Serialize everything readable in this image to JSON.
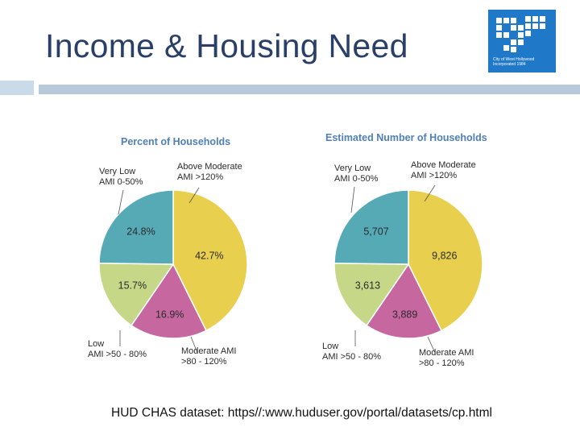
{
  "slide": {
    "title": "Income & Housing Need",
    "source": "HUD CHAS dataset: https//:www.huduser.gov/portal/datasets/cp.html"
  },
  "logo": {
    "caption_line1": "City of West Hollywood",
    "caption_line2": "Incorporated 1984"
  },
  "colors": {
    "above_moderate": "#e8cf4d",
    "moderate": "#c667a0",
    "low": "#c6d887",
    "very_low": "#55aab5",
    "chart_title": "#4f7fb6",
    "label": "#2b2b2b"
  },
  "chart_data": [
    {
      "type": "pie",
      "title": "Percent of Households",
      "categories": [
        "Above Moderate",
        "Moderate",
        "Low",
        "Very Low"
      ],
      "values": [
        42.7,
        16.9,
        15.7,
        24.8
      ],
      "value_labels": [
        "42.7%",
        "16.9%",
        "15.7%",
        "24.8%"
      ],
      "legend_labels": [
        {
          "line1": "Above Moderate",
          "line2": "AMI >120%"
        },
        {
          "line1": "Moderate AMI",
          "line2": ">80 - 120%"
        },
        {
          "line1": "Low",
          "line2": "AMI >50 - 80%"
        },
        {
          "line1": "Very Low",
          "line2": "AMI 0-50%"
        }
      ]
    },
    {
      "type": "pie",
      "title": "Estimated Number of Households",
      "categories": [
        "Above Moderate",
        "Moderate",
        "Low",
        "Very Low"
      ],
      "values": [
        9826,
        3889,
        3613,
        5707
      ],
      "value_labels": [
        "9,826",
        "3,889",
        "3,613",
        "5,707"
      ],
      "legend_labels": [
        {
          "line1": "Above Moderate",
          "line2": "AMI >120%"
        },
        {
          "line1": "Moderate AMI",
          "line2": ">80 - 120%"
        },
        {
          "line1": "Low",
          "line2": "AMI >50 - 80%"
        },
        {
          "line1": "Very Low",
          "line2": "AMI 0-50%"
        }
      ]
    }
  ]
}
